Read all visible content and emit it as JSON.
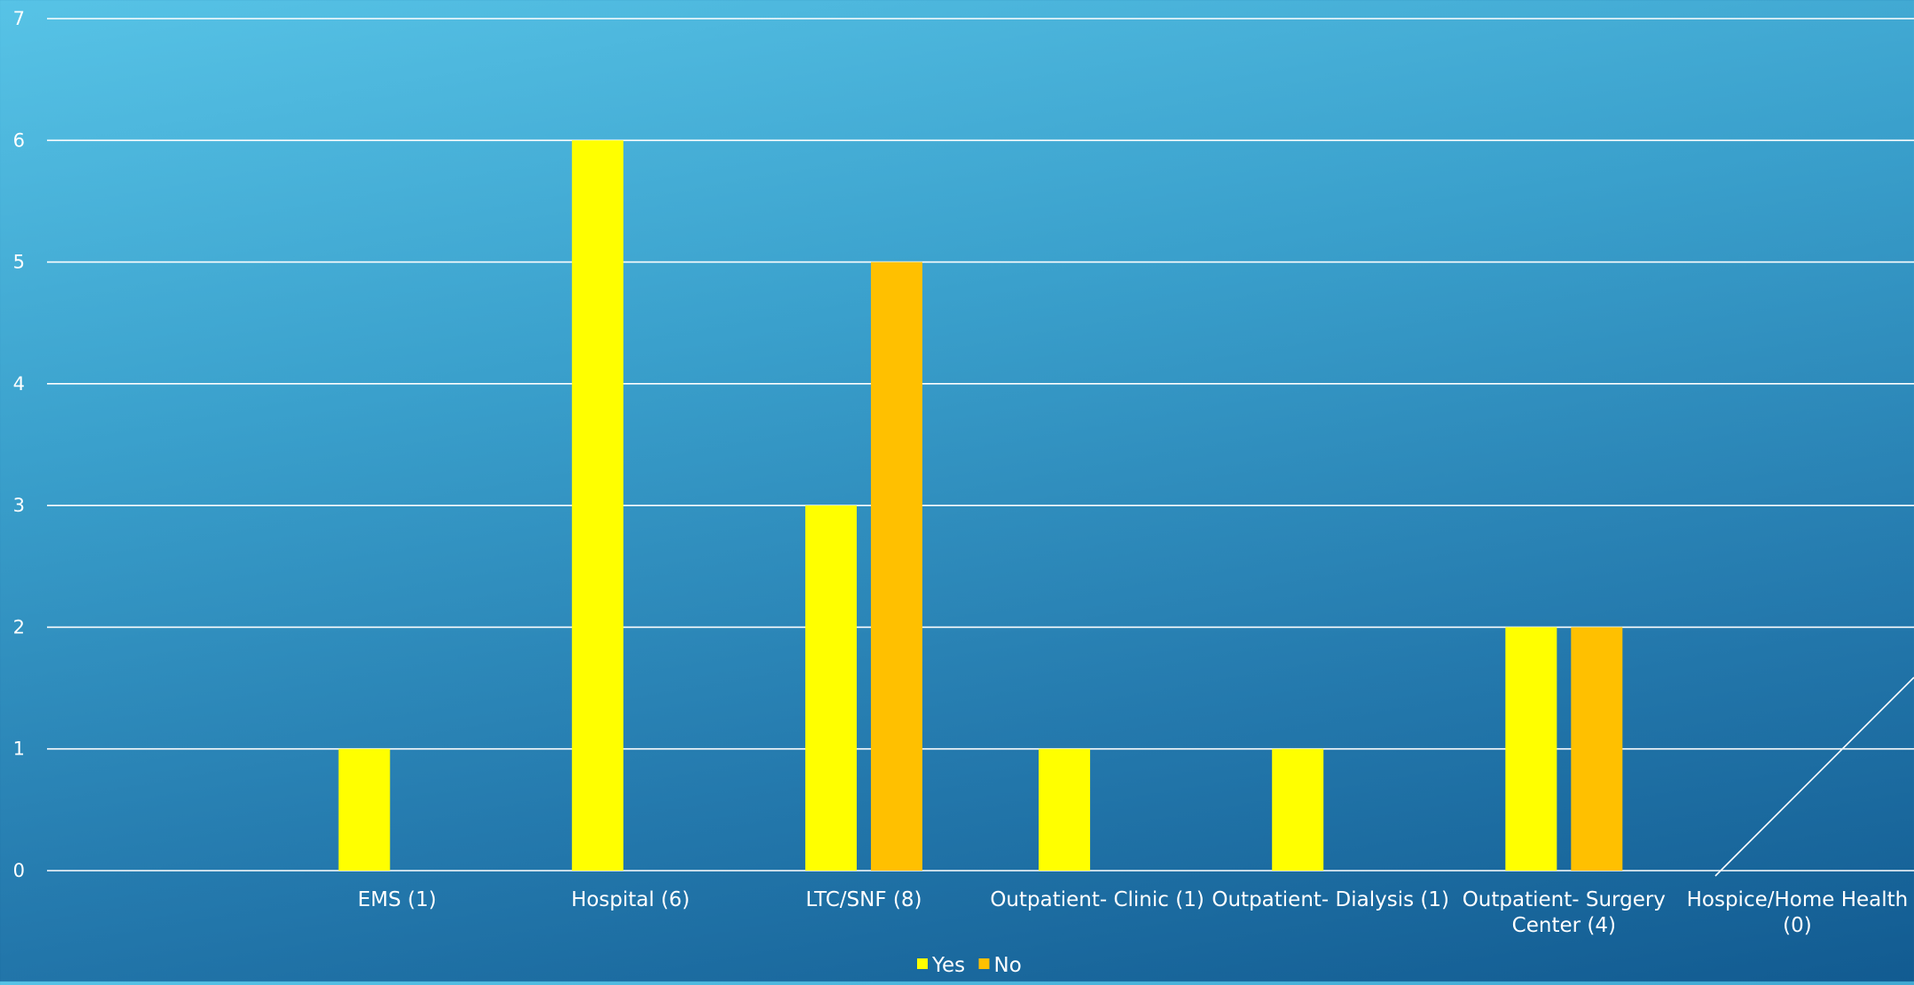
{
  "chart_data": {
    "type": "bar",
    "categories": [
      [
        "EMS (1)"
      ],
      [
        "Hospital (6)"
      ],
      [
        "LTC/SNF (8)"
      ],
      [
        "Outpatient- Clinic (1)"
      ],
      [
        "Outpatient- Dialysis (1)"
      ],
      [
        "Outpatient- Surgery",
        "Center (4)"
      ],
      [
        "Hospice/Home Health",
        "(0)"
      ]
    ],
    "series": [
      {
        "name": "Yes",
        "values": [
          1,
          6,
          3,
          1,
          1,
          2,
          0
        ]
      },
      {
        "name": "No",
        "values": [
          0,
          0,
          5,
          0,
          0,
          2,
          0
        ]
      }
    ],
    "yticks": [
      "0",
      "1",
      "2",
      "3",
      "4",
      "5",
      "6",
      "7"
    ],
    "ylim": [
      0,
      7
    ],
    "grid": true,
    "legend": "bottom-center",
    "colors": {
      "Yes": "#ffff00",
      "No": "#ffc000",
      "grid": "#ffffff",
      "text": "#ffffff"
    }
  }
}
